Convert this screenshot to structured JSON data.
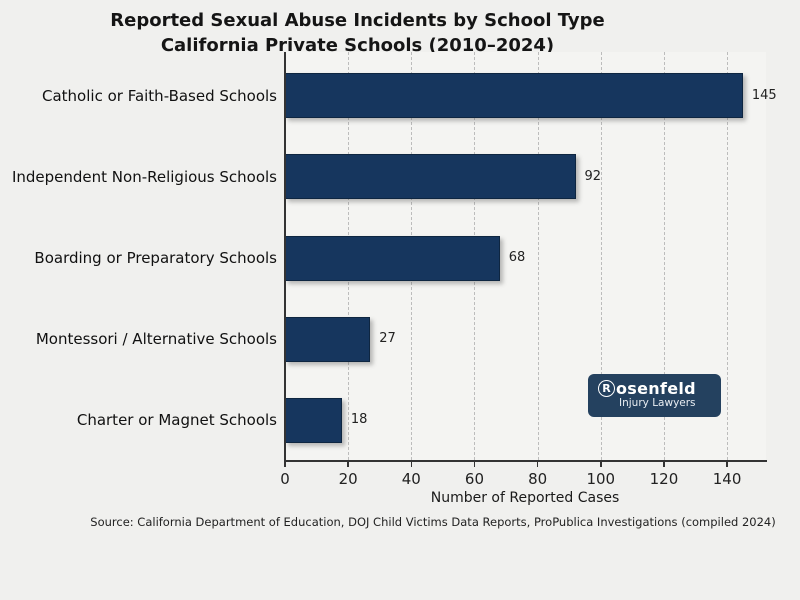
{
  "title": {
    "line1": "Reported Sexual Abuse Incidents by School Type",
    "line2": "California Private Schools (2010–2024)"
  },
  "chart_data": {
    "type": "bar",
    "orientation": "horizontal",
    "title": "Reported Sexual Abuse Incidents by School Type — California Private Schools (2010–2024)",
    "categories": [
      "Catholic or Faith-Based Schools",
      "Independent Non-Religious Schools",
      "Boarding or Preparatory Schools",
      "Montessori / Alternative Schools",
      "Charter or Magnet Schools"
    ],
    "values": [
      145,
      92,
      68,
      27,
      18
    ],
    "xlabel": "Number of Reported Cases",
    "ylabel": "",
    "xlim": [
      0,
      152
    ],
    "xticks": [
      0,
      20,
      40,
      60,
      80,
      100,
      120,
      140
    ],
    "grid": "dashed-vertical",
    "legend": "none",
    "bar_color": "#16365e"
  },
  "source": "Source: California Department of Education, DOJ Child Victims Data Reports, ProPublica Investigations (compiled 2024)",
  "logo": {
    "initial": "R",
    "rest": "osenfeld",
    "tagline": "Injury Lawyers"
  }
}
